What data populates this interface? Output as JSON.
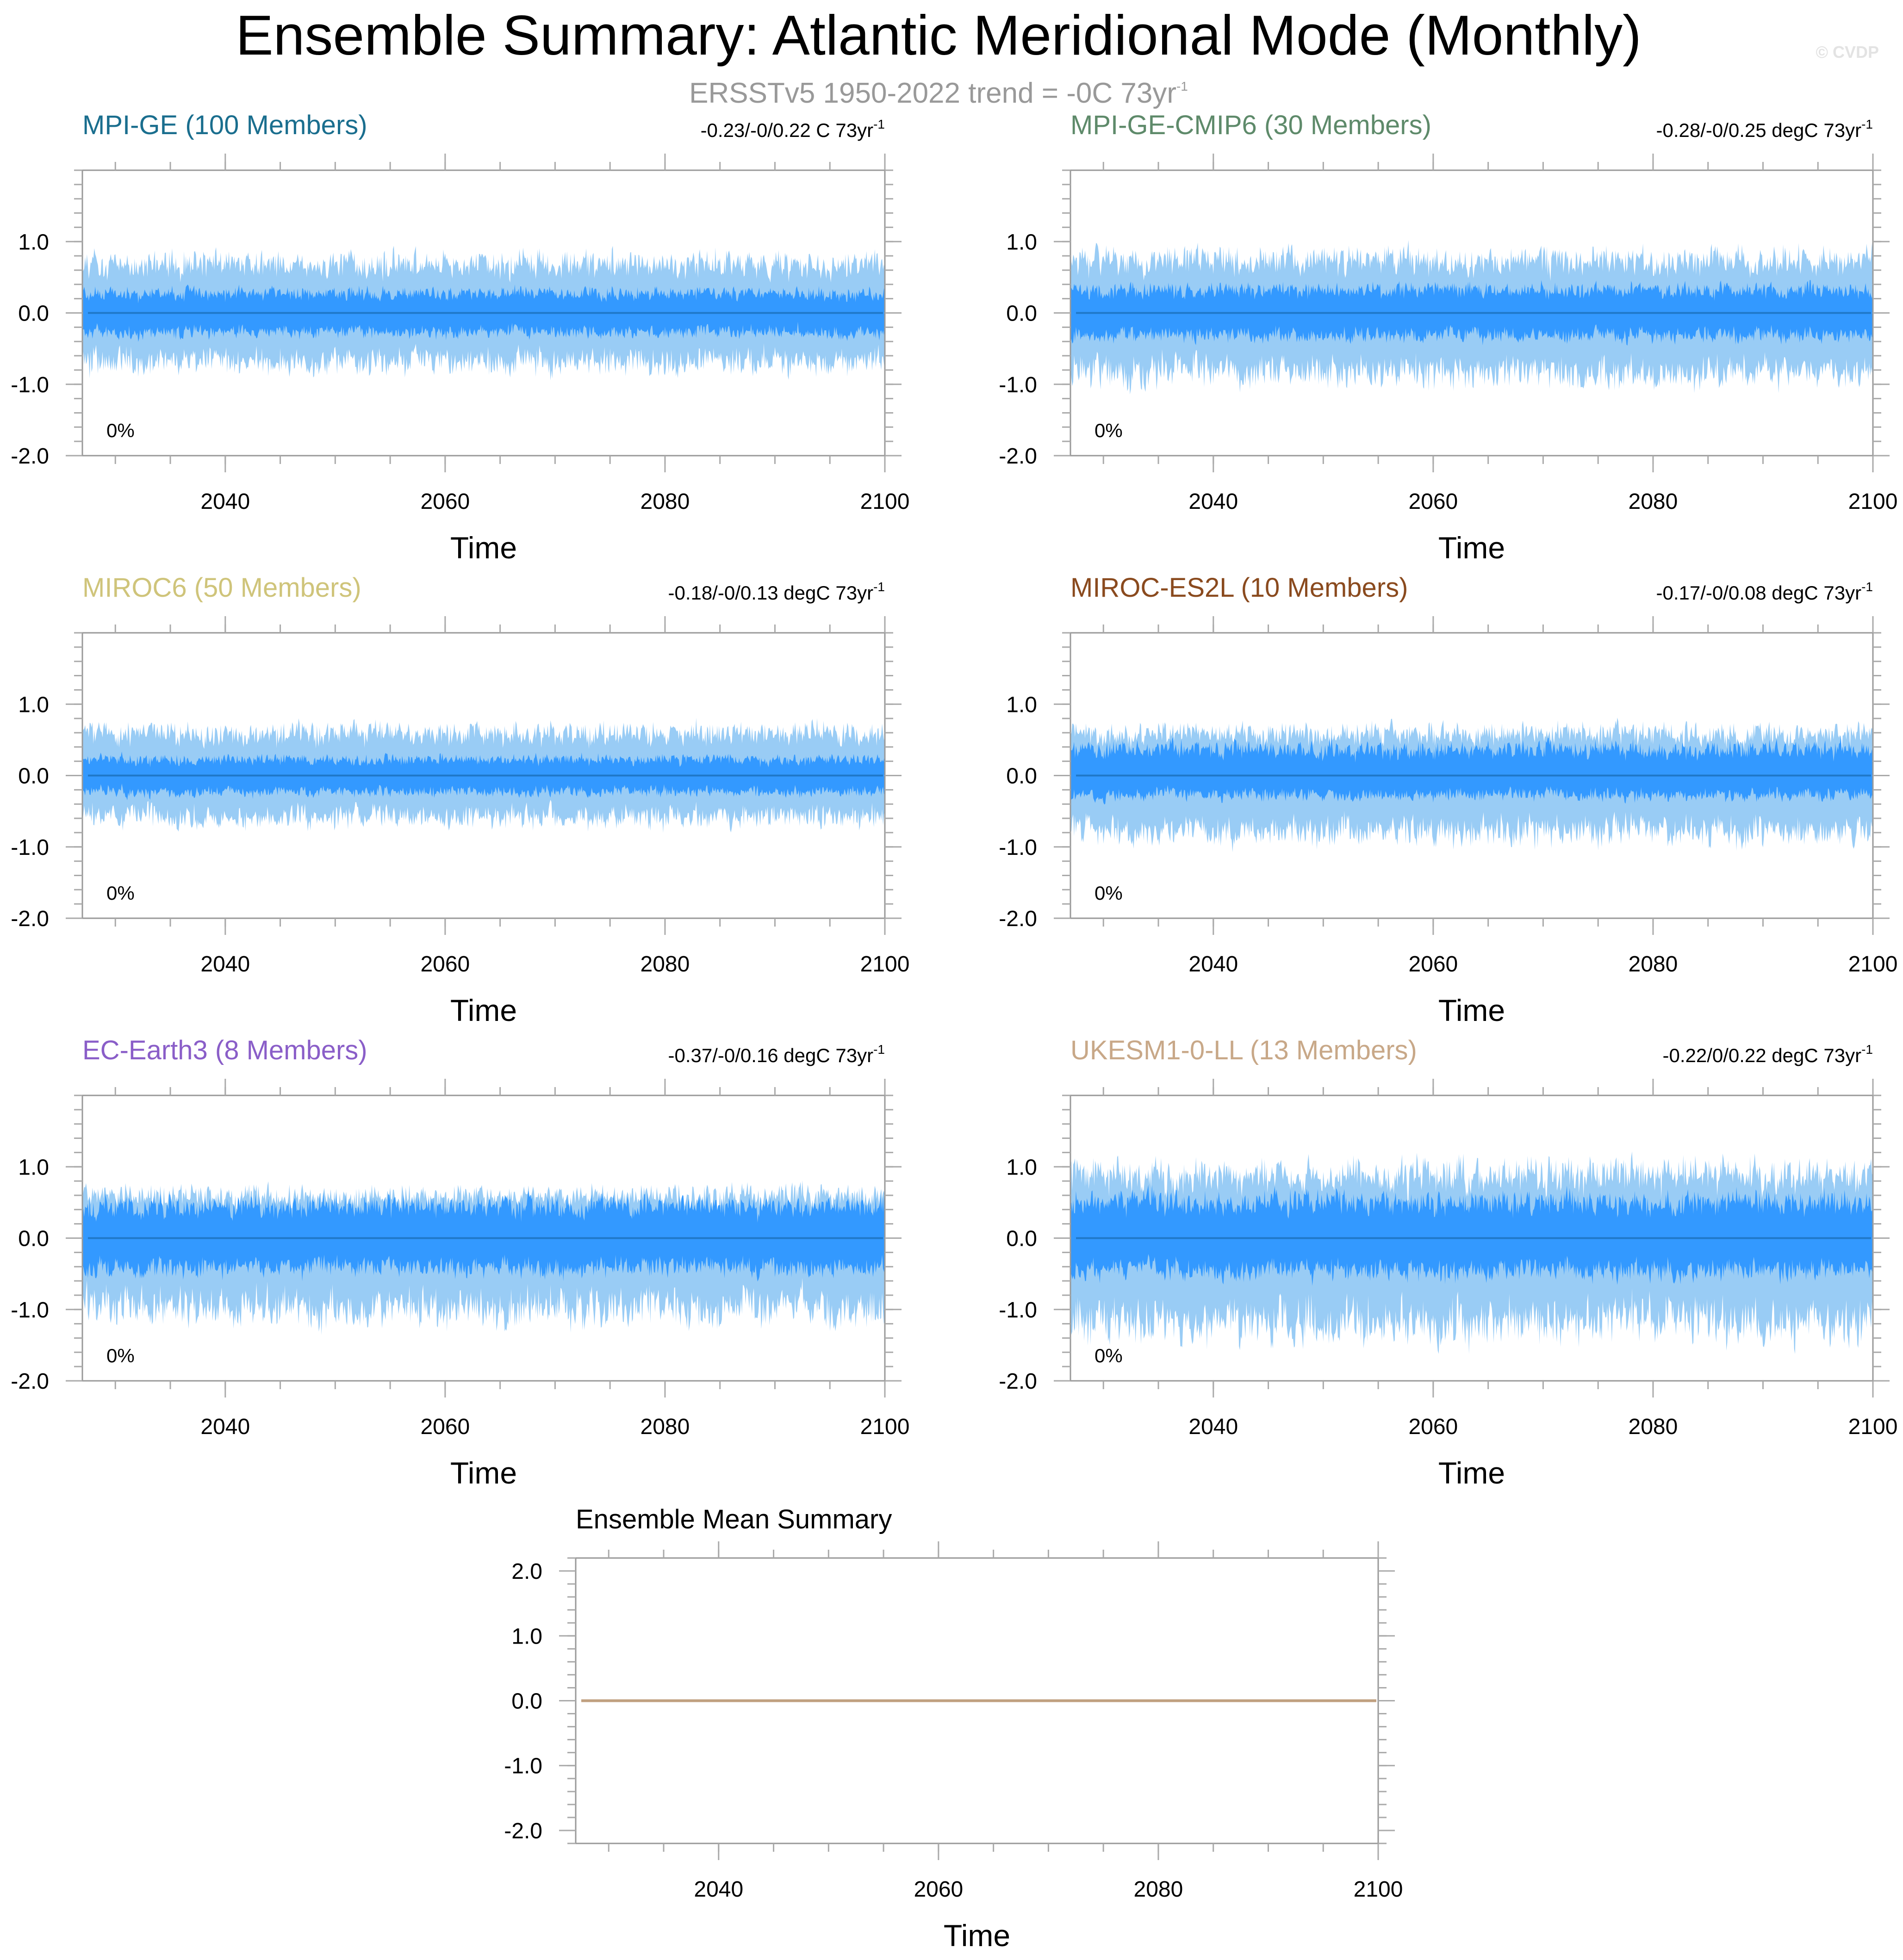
{
  "figure": {
    "title": "Ensemble Summary: Atlantic Meridional Mode (Monthly)",
    "subtitle": "ERSSTv5 1950-2022 trend = -0C 73yr",
    "subtitle_sup": "-1",
    "watermark": "© CVDP"
  },
  "colors": {
    "band_inner": "#3399ff",
    "band_outer": "#99ccf5",
    "mean_line": "#1f78c8",
    "ensemble_mean_line": "#c0a080",
    "frame": "#999999"
  },
  "chart_data": [
    {
      "type": "area",
      "title": "MPI-GE (100 Members)",
      "title_color": "#1a6e8e",
      "trend_text": "-0.23/-0/0.22 C 73yr",
      "trend_sup": "-1",
      "annotation": "0%",
      "xlabel": "Time",
      "xlim": [
        2027,
        2100
      ],
      "ylim": [
        -2.0,
        2.0
      ],
      "xticks": [
        2040,
        2060,
        2080,
        2100
      ],
      "yticks": [
        -2.0,
        -1.0,
        0.0,
        1.0
      ],
      "ytick_labels": [
        "-2.0",
        "-1.0",
        "0.0",
        "1.0"
      ],
      "series": [
        {
          "name": "",
          "stat": "mean",
          "values": [
            0.0,
            0.0
          ]
        },
        {
          "name": "",
          "stat": "25th-75th percentile",
          "approx_range": [
            -0.3,
            0.3
          ]
        },
        {
          "name": "",
          "stat": "min-max",
          "approx_range": [
            -0.7,
            0.7
          ]
        }
      ]
    },
    {
      "type": "area",
      "title": "MPI-GE-CMIP6 (30 Members)",
      "title_color": "#5e8a6a",
      "trend_text": "-0.28/-0/0.25 degC 73yr",
      "trend_sup": "-1",
      "annotation": "0%",
      "xlabel": "Time",
      "xlim": [
        2027,
        2100
      ],
      "ylim": [
        -2.0,
        2.0
      ],
      "xticks": [
        2040,
        2060,
        2080,
        2100
      ],
      "yticks": [
        -2.0,
        -1.0,
        0.0,
        1.0
      ],
      "ytick_labels": [
        "-2.0",
        "-1.0",
        "0.0",
        "1.0"
      ],
      "series": [
        {
          "name": "",
          "stat": "mean",
          "values": [
            0.0,
            0.0
          ]
        },
        {
          "name": "",
          "stat": "25th-75th percentile",
          "approx_range": [
            -0.35,
            0.35
          ]
        },
        {
          "name": "",
          "stat": "min-max",
          "approx_range": [
            -0.85,
            0.75
          ]
        }
      ]
    },
    {
      "type": "area",
      "title": "MIROC6 (50 Members)",
      "title_color": "#cfc47a",
      "trend_text": "-0.18/-0/0.13 degC 73yr",
      "trend_sup": "-1",
      "annotation": "0%",
      "xlabel": "Time",
      "xlim": [
        2027,
        2100
      ],
      "ylim": [
        -2.0,
        2.0
      ],
      "xticks": [
        2040,
        2060,
        2080,
        2100
      ],
      "yticks": [
        -2.0,
        -1.0,
        0.0,
        1.0
      ],
      "ytick_labels": [
        "-2.0",
        "-1.0",
        "0.0",
        "1.0"
      ],
      "series": [
        {
          "name": "",
          "stat": "mean",
          "values": [
            0.0,
            0.0
          ]
        },
        {
          "name": "",
          "stat": "25th-75th percentile",
          "approx_range": [
            -0.25,
            0.25
          ]
        },
        {
          "name": "",
          "stat": "min-max",
          "approx_range": [
            -0.6,
            0.6
          ]
        }
      ]
    },
    {
      "type": "area",
      "title": "MIROC-ES2L (10 Members)",
      "title_color": "#8a4a1e",
      "trend_text": "-0.17/-0/0.08 degC 73yr",
      "trend_sup": "-1",
      "annotation": "0%",
      "xlabel": "Time",
      "xlim": [
        2027,
        2100
      ],
      "ylim": [
        -2.0,
        2.0
      ],
      "xticks": [
        2040,
        2060,
        2080,
        2100
      ],
      "yticks": [
        -2.0,
        -1.0,
        0.0,
        1.0
      ],
      "ytick_labels": [
        "-2.0",
        "-1.0",
        "0.0",
        "1.0"
      ],
      "series": [
        {
          "name": "",
          "stat": "mean",
          "values": [
            0.0,
            0.0
          ]
        },
        {
          "name": "",
          "stat": "25th-75th percentile",
          "approx_range": [
            -0.3,
            0.4
          ]
        },
        {
          "name": "",
          "stat": "min-max",
          "approx_range": [
            -0.8,
            0.6
          ]
        }
      ]
    },
    {
      "type": "area",
      "title": "EC-Earth3 (8 Members)",
      "title_color": "#8a5ec8",
      "trend_text": "-0.37/-0/0.16 degC 73yr",
      "trend_sup": "-1",
      "annotation": "0%",
      "xlabel": "Time",
      "xlim": [
        2027,
        2100
      ],
      "ylim": [
        -2.0,
        2.0
      ],
      "xticks": [
        2040,
        2060,
        2080,
        2100
      ],
      "yticks": [
        -2.0,
        -1.0,
        0.0,
        1.0
      ],
      "ytick_labels": [
        "-2.0",
        "-1.0",
        "0.0",
        "1.0"
      ],
      "series": [
        {
          "name": "",
          "stat": "mean",
          "values": [
            0.0,
            0.0
          ]
        },
        {
          "name": "",
          "stat": "25th-75th percentile",
          "approx_range": [
            -0.45,
            0.5
          ]
        },
        {
          "name": "",
          "stat": "min-max",
          "approx_range": [
            -1.0,
            0.6
          ]
        }
      ]
    },
    {
      "type": "area",
      "title": "UKESM1-0-LL (13 Members)",
      "title_color": "#c8a888",
      "trend_text": "-0.22/0/0.22 degC 73yr",
      "trend_sup": "-1",
      "annotation": "0%",
      "xlabel": "Time",
      "xlim": [
        2027,
        2100
      ],
      "ylim": [
        -2.0,
        2.0
      ],
      "xticks": [
        2040,
        2060,
        2080,
        2100
      ],
      "yticks": [
        -2.0,
        -1.0,
        0.0,
        1.0
      ],
      "ytick_labels": [
        "-2.0",
        "-1.0",
        "0.0",
        "1.0"
      ],
      "series": [
        {
          "name": "",
          "stat": "mean",
          "values": [
            0.0,
            0.0
          ]
        },
        {
          "name": "",
          "stat": "25th-75th percentile",
          "approx_range": [
            -0.5,
            0.55
          ]
        },
        {
          "name": "",
          "stat": "min-max",
          "approx_range": [
            -1.2,
            0.9
          ]
        }
      ]
    },
    {
      "type": "line",
      "title": "Ensemble Mean Summary",
      "title_color": "#000000",
      "xlabel": "Time",
      "xlim": [
        2027,
        2100
      ],
      "ylim": [
        -2.2,
        2.2
      ],
      "xticks": [
        2040,
        2060,
        2080,
        2100
      ],
      "yticks": [
        -2.0,
        -1.0,
        0.0,
        1.0,
        2.0
      ],
      "ytick_labels": [
        "-2.0",
        "-1.0",
        "0.0",
        "1.0",
        "2.0"
      ],
      "series": [
        {
          "name": "",
          "values": [
            0.0,
            0.0
          ],
          "x": [
            2027,
            2100
          ]
        }
      ]
    }
  ]
}
